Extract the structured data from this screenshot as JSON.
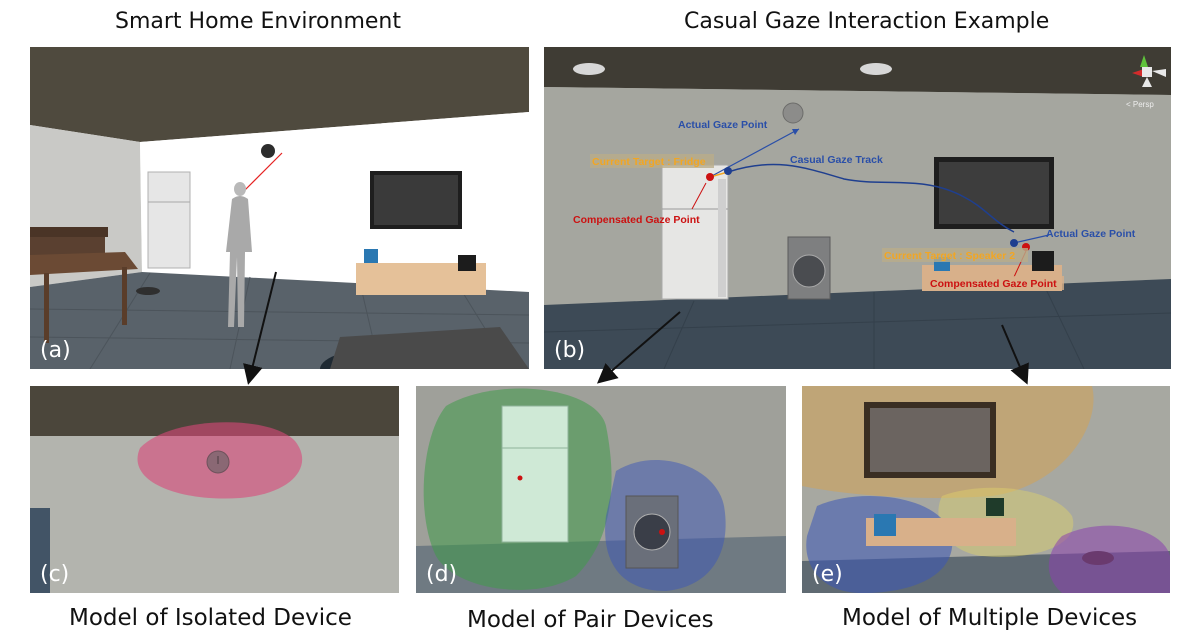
{
  "headings": {
    "left": "Smart Home Environment",
    "right": "Casual Gaze Interaction Example"
  },
  "captions": {
    "c": "Model of Isolated Device",
    "d": "Model of Pair Devices",
    "e": "Model of Multiple Devices"
  },
  "panel_labels": {
    "a": "(a)",
    "b": "(b)",
    "c": "(c)",
    "d": "(d)",
    "e": "(e)"
  },
  "annotations": {
    "actual_gaze_1": "Actual Gaze Point",
    "casual_gaze_track": "Casual Gaze Track",
    "current_target_fridge": "Current Target : Fridge",
    "compensated_gaze_1": "Compensated Gaze Point",
    "actual_gaze_2": "Actual Gaze Point",
    "current_target_speaker": "Current Target : Speaker 2",
    "compensated_gaze_2": "Compensated Gaze Point",
    "persp": "< Persp"
  },
  "colors": {
    "annotation_blue": "#2a4fa8",
    "annotation_red": "#cc1111",
    "annotation_orange": "#f2a623",
    "region_pink": "#d9487a",
    "region_green": "#3f9a4a",
    "region_blue": "#3b55b8",
    "region_tan": "#d8a24e",
    "region_purple": "#8a3fae"
  }
}
